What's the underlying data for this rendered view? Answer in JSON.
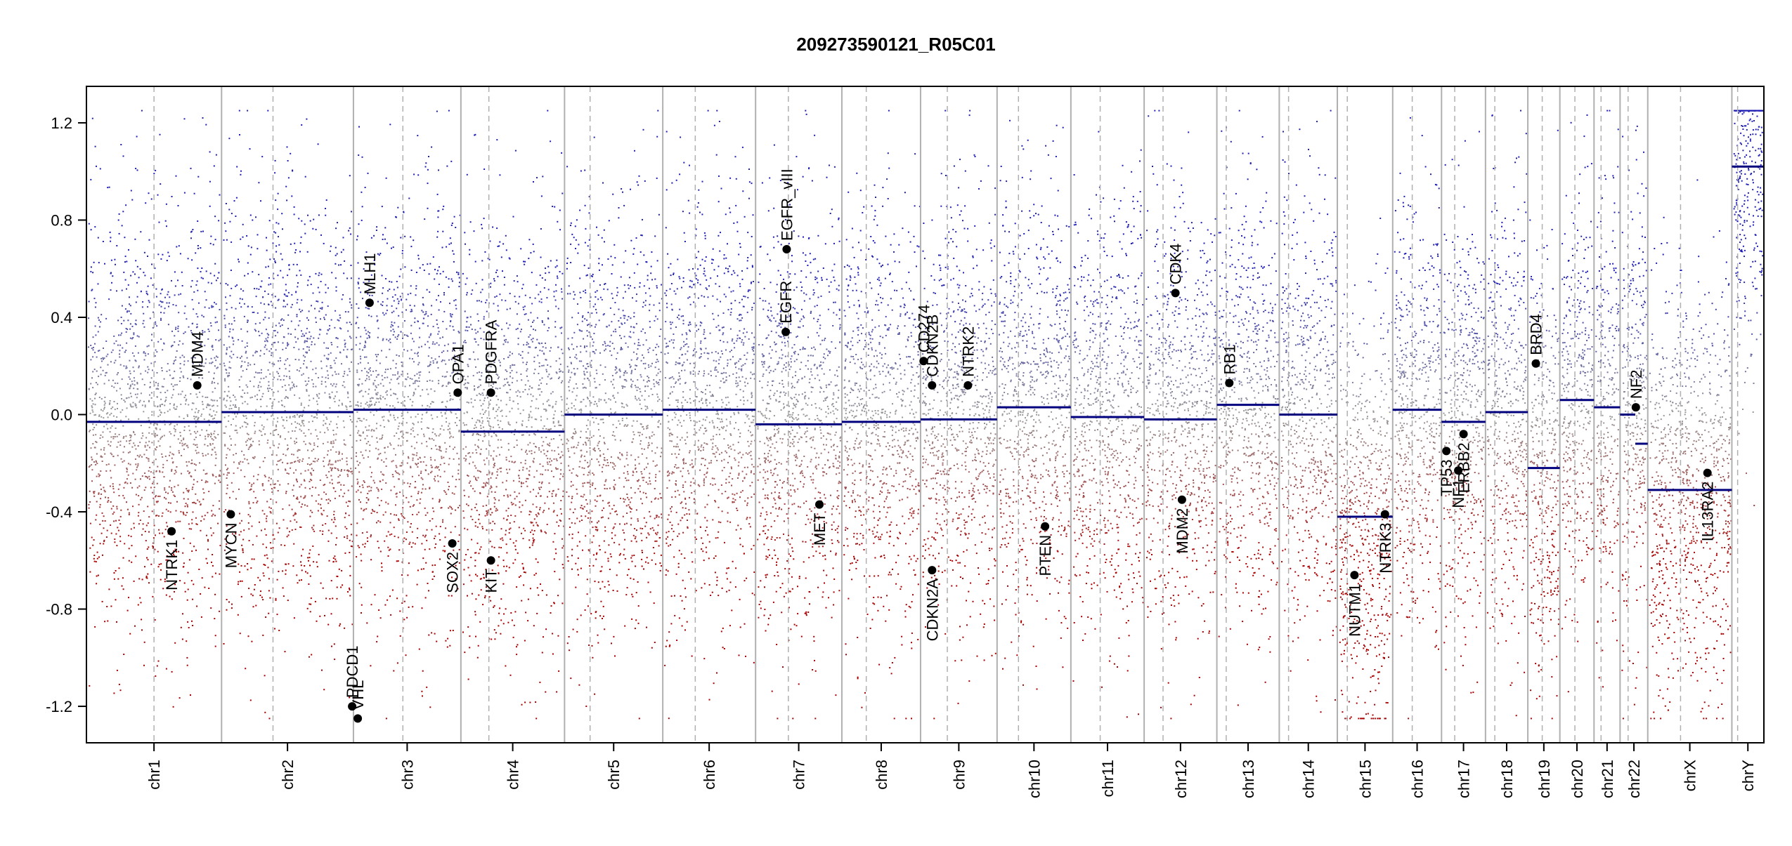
{
  "chart_data": {
    "type": "scatter",
    "title": "209273590121_R05C01",
    "xlabel": "",
    "ylabel": "",
    "ylim": [
      -1.35,
      1.35
    ],
    "yticks": [
      "1.2",
      "0.8",
      "0.4",
      "0.0",
      "-0.4",
      "-0.8",
      "-1.2"
    ],
    "ytick_values": [
      1.2,
      0.8,
      0.4,
      0.0,
      -0.4,
      -0.8,
      -1.2
    ],
    "grid": false,
    "colors": {
      "gain": "#1f1fb4",
      "loss": "#a80000",
      "neutral": "#999999",
      "segment": "#00007f",
      "boundary": "#b0b0b0",
      "centromere": "#b0b0b0",
      "axis": "#000000",
      "gene_dot": "#000000"
    },
    "chromosomes": [
      {
        "name": "chr1",
        "length": 249,
        "centromere": 0.5,
        "segment": -0.03
      },
      {
        "name": "chr2",
        "length": 243,
        "centromere": 0.39,
        "segment": 0.01
      },
      {
        "name": "chr3",
        "length": 198,
        "centromere": 0.46,
        "segment": 0.02
      },
      {
        "name": "chr4",
        "length": 191,
        "centromere": 0.27,
        "segment": -0.07
      },
      {
        "name": "chr5",
        "length": 181,
        "centromere": 0.26,
        "segment": 0.0
      },
      {
        "name": "chr6",
        "length": 171,
        "centromere": 0.35,
        "segment": 0.02
      },
      {
        "name": "chr7",
        "length": 159,
        "centromere": 0.38,
        "segment": -0.04
      },
      {
        "name": "chr8",
        "length": 145,
        "centromere": 0.31,
        "segment": -0.03
      },
      {
        "name": "chr9",
        "length": 141,
        "centromere": 0.35,
        "segment": -0.02
      },
      {
        "name": "chr10",
        "length": 136,
        "centromere": 0.29,
        "segment": 0.03
      },
      {
        "name": "chr11",
        "length": 135,
        "centromere": 0.4,
        "segment": -0.01
      },
      {
        "name": "chr12",
        "length": 134,
        "centromere": 0.26,
        "segment": -0.02
      },
      {
        "name": "chr13",
        "length": 115,
        "centromere": 0.15,
        "segment": 0.04
      },
      {
        "name": "chr14",
        "length": 107,
        "centromere": 0.16,
        "segment": 0.0
      },
      {
        "name": "chr15",
        "length": 102,
        "centromere": 0.18,
        "segment": -0.42
      },
      {
        "name": "chr16",
        "length": 90,
        "centromere": 0.4,
        "segment": 0.02
      },
      {
        "name": "chr17",
        "length": 81,
        "centromere": 0.3,
        "segment": -0.03
      },
      {
        "name": "chr18",
        "length": 78,
        "centromere": 0.22,
        "segment": 0.01
      },
      {
        "name": "chr19",
        "length": 59,
        "centromere": 0.45,
        "segment": -0.22
      },
      {
        "name": "chr20",
        "length": 63,
        "centromere": 0.44,
        "segment": 0.06
      },
      {
        "name": "chr21",
        "length": 48,
        "centromere": 0.27,
        "segment": 0.03
      },
      {
        "name": "chr22",
        "length": 51,
        "centromere": 0.29,
        "segment": 0.0
      },
      {
        "name": "chrX",
        "length": 155,
        "centromere": 0.39,
        "segment": -0.31
      },
      {
        "name": "chrY",
        "length": 59,
        "centromere": 0.18,
        "segment": 1.02
      }
    ],
    "extra_segments": [
      {
        "chrom": "chr22",
        "from": 0.55,
        "to": 1.0,
        "value": -0.12
      }
    ],
    "genes": [
      {
        "name": "MDM4",
        "chrom": "chr1",
        "pos": 0.82,
        "value": 0.12,
        "side": "above"
      },
      {
        "name": "NTRK1",
        "chrom": "chr1",
        "pos": 0.63,
        "value": -0.48,
        "side": "below"
      },
      {
        "name": "MYCN",
        "chrom": "chr2",
        "pos": 0.07,
        "value": -0.41,
        "side": "below"
      },
      {
        "name": "PDCD1",
        "chrom": "chr2",
        "pos": 0.99,
        "value": -1.2,
        "side": "above"
      },
      {
        "name": "MLH1",
        "chrom": "chr3",
        "pos": 0.15,
        "value": 0.46,
        "side": "above"
      },
      {
        "name": "VHL",
        "chrom": "chr3",
        "pos": 0.04,
        "value": -1.25,
        "side": "above"
      },
      {
        "name": "OPA1",
        "chrom": "chr3",
        "pos": 0.97,
        "value": 0.09,
        "side": "above"
      },
      {
        "name": "SOX2",
        "chrom": "chr3",
        "pos": 0.92,
        "value": -0.53,
        "side": "below"
      },
      {
        "name": "PDGFRA",
        "chrom": "chr4",
        "pos": 0.29,
        "value": 0.09,
        "side": "above"
      },
      {
        "name": "KIT",
        "chrom": "chr4",
        "pos": 0.29,
        "value": -0.6,
        "side": "below"
      },
      {
        "name": "EGFR_vIII",
        "chrom": "chr7",
        "pos": 0.36,
        "value": 0.68,
        "side": "above"
      },
      {
        "name": "EGFR",
        "chrom": "chr7",
        "pos": 0.35,
        "value": 0.34,
        "side": "above"
      },
      {
        "name": "MET",
        "chrom": "chr7",
        "pos": 0.74,
        "value": -0.37,
        "side": "below"
      },
      {
        "name": "CD274",
        "chrom": "chr9",
        "pos": 0.04,
        "value": 0.22,
        "side": "above"
      },
      {
        "name": "CDKN2B",
        "chrom": "chr9",
        "pos": 0.15,
        "value": 0.12,
        "side": "above"
      },
      {
        "name": "CDKN2A",
        "chrom": "chr9",
        "pos": 0.15,
        "value": -0.64,
        "side": "below"
      },
      {
        "name": "NTRK2",
        "chrom": "chr9",
        "pos": 0.62,
        "value": 0.12,
        "side": "above"
      },
      {
        "name": "PTEN",
        "chrom": "chr10",
        "pos": 0.65,
        "value": -0.46,
        "side": "below"
      },
      {
        "name": "CDK4",
        "chrom": "chr12",
        "pos": 0.43,
        "value": 0.5,
        "side": "above"
      },
      {
        "name": "MDM2",
        "chrom": "chr12",
        "pos": 0.52,
        "value": -0.35,
        "side": "below"
      },
      {
        "name": "RB1",
        "chrom": "chr13",
        "pos": 0.2,
        "value": 0.13,
        "side": "above"
      },
      {
        "name": "NUTM1",
        "chrom": "chr15",
        "pos": 0.31,
        "value": -0.66,
        "side": "below"
      },
      {
        "name": "NTRK3",
        "chrom": "chr15",
        "pos": 0.86,
        "value": -0.41,
        "side": "below"
      },
      {
        "name": "TP53",
        "chrom": "chr17",
        "pos": 0.11,
        "value": -0.15,
        "side": "below"
      },
      {
        "name": "ERBB2",
        "chrom": "chr17",
        "pos": 0.5,
        "value": -0.08,
        "side": "below"
      },
      {
        "name": "NF1",
        "chrom": "chr17",
        "pos": 0.38,
        "value": -0.23,
        "side": "below"
      },
      {
        "name": "BRD4",
        "chrom": "chr19",
        "pos": 0.25,
        "value": 0.21,
        "side": "above"
      },
      {
        "name": "NF2",
        "chrom": "chr22",
        "pos": 0.57,
        "value": 0.03,
        "side": "above"
      },
      {
        "name": "IL13RA2",
        "chrom": "chrX",
        "pos": 0.71,
        "value": -0.24,
        "side": "below"
      }
    ]
  }
}
